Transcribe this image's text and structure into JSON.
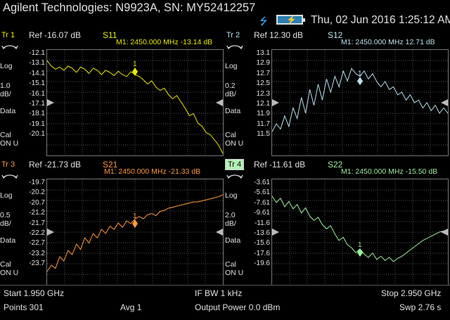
{
  "header": {
    "title": "Agilent Technologies: N9923A, SN: MY52412257",
    "datetime": "Thu, 02 Jun 2016 1:25:12 AM"
  },
  "colors": {
    "s11": "#e8e800",
    "s12": "#b8e0f0",
    "s21": "#ff9a3a",
    "s22": "#9ef09e",
    "active_tab": "#b5f0b5"
  },
  "traces": [
    {
      "id": "Tr 1",
      "param": "S11",
      "ref": "Ref -16.07 dB",
      "marker": "M1:  2450.000 MHz  -13.14 dB",
      "marker_num": "1",
      "format": "Log",
      "scale": "1.0",
      "unit": "dB/",
      "mode": "Data",
      "cal1": "Cal",
      "cal2": "ON U",
      "ticks": [
        "-12.1",
        "-13.1",
        "-14.1",
        "-15.1",
        "-16.1",
        "-17.1",
        "-18.1",
        "-19.1",
        "-20.1"
      ],
      "color": "#e8e800",
      "active": false,
      "chart_data": {
        "type": "line",
        "x_start_mhz": 1950,
        "x_stop_mhz": 2950,
        "ylim": [
          -21.07,
          -11.07
        ],
        "ref_value": -16.07,
        "marker_x": 2450,
        "marker_y": -13.14,
        "values": [
          -12.1,
          -12.6,
          -12.9,
          -12.7,
          -13.0,
          -12.6,
          -12.8,
          -13.2,
          -12.7,
          -12.9,
          -13.3,
          -12.8,
          -13.0,
          -13.4,
          -13.0,
          -13.2,
          -13.5,
          -13.1,
          -13.4,
          -13.6,
          -13.14,
          -13.4,
          -13.6,
          -13.9,
          -14.3,
          -14.0,
          -14.6,
          -14.9,
          -14.7,
          -15.3,
          -15.7,
          -15.4,
          -16.0,
          -16.6,
          -17.3,
          -17.1,
          -18.0,
          -18.3,
          -18.9,
          -19.1,
          -19.6,
          -20.1,
          -20.9
        ]
      }
    },
    {
      "id": "Tr 2",
      "param": "S12",
      "ref": "Ref 12.30 dB",
      "marker": "M1:  2450.000 MHz    12.71 dB",
      "marker_num": "1",
      "format": "Log",
      "scale": "0.2",
      "unit": "dB/",
      "mode": "Data",
      "cal1": "Cal",
      "cal2": "ON U",
      "ticks": [
        "13.1",
        "12.9",
        "12.7",
        "12.5",
        "12.3",
        "12.1",
        "11.9",
        "11.7",
        "11.5"
      ],
      "color": "#b8e0f0",
      "active": false,
      "chart_data": {
        "type": "line",
        "x_start_mhz": 1950,
        "x_stop_mhz": 2950,
        "ylim": [
          11.3,
          13.3
        ],
        "ref_value": 12.3,
        "marker_x": 2450,
        "marker_y": 12.71,
        "values": [
          11.75,
          11.9,
          11.8,
          12.05,
          11.85,
          12.2,
          12.0,
          12.4,
          12.1,
          12.55,
          12.25,
          12.65,
          12.35,
          12.75,
          12.5,
          12.8,
          12.6,
          12.9,
          12.71,
          12.95,
          12.85,
          12.8,
          12.9,
          12.75,
          12.85,
          12.7,
          12.6,
          12.7,
          12.55,
          12.6,
          12.45,
          12.5,
          12.35,
          12.45,
          12.3,
          12.35,
          12.2,
          12.3,
          12.15,
          12.25,
          12.1,
          12.2,
          12.1
        ]
      }
    },
    {
      "id": "Tr 3",
      "param": "S21",
      "ref": "Ref -21.73 dB",
      "marker": "M1:  2450.000 MHz  -21.33 dB",
      "marker_num": "1",
      "format": "Log",
      "scale": "0.5",
      "unit": "dB/",
      "mode": "Data",
      "cal1": "Cal",
      "cal2": "ON U",
      "ticks": [
        "-19.7",
        "-20.2",
        "-20.7",
        "-21.2",
        "-21.7",
        "-22.2",
        "-22.7",
        "-23.2",
        "-23.7"
      ],
      "color": "#ff9a3a",
      "active": false,
      "chart_data": {
        "type": "line",
        "x_start_mhz": 1950,
        "x_stop_mhz": 2950,
        "ylim": [
          -24.23,
          -19.23
        ],
        "ref_value": -21.73,
        "marker_x": 2450,
        "marker_y": -21.33,
        "values": [
          -23.6,
          -23.3,
          -23.45,
          -22.9,
          -23.1,
          -22.6,
          -22.8,
          -22.3,
          -22.55,
          -22.0,
          -22.25,
          -21.8,
          -22.0,
          -21.6,
          -21.8,
          -21.45,
          -21.6,
          -21.3,
          -21.5,
          -21.2,
          -21.33,
          -21.1,
          -21.0,
          -21.1,
          -20.9,
          -20.85,
          -20.95,
          -20.75,
          -20.7,
          -20.6,
          -20.55,
          -20.5,
          -20.45,
          -20.4,
          -20.35,
          -20.3,
          -20.3,
          -20.25,
          -20.2,
          -20.15,
          -20.1,
          -20.05,
          -19.95
        ]
      }
    },
    {
      "id": "Tr 4",
      "param": "S22",
      "ref": "Ref -11.61 dB",
      "marker": "M1:  2450.000 MHz  -15.50 dB",
      "marker_num": "1",
      "format": "Log",
      "scale": "2.0",
      "unit": "dB/",
      "mode": "Data",
      "cal1": "Cal",
      "cal2": "ON U",
      "ticks": [
        "-3.61",
        "-5.61",
        "-7.61",
        "-9.61",
        "-11.6",
        "-13.6",
        "-15.6",
        "-17.6",
        "-19.6"
      ],
      "color": "#9ef09e",
      "active": true,
      "chart_data": {
        "type": "line",
        "x_start_mhz": 1950,
        "x_stop_mhz": 2950,
        "ylim": [
          -21.61,
          -1.61
        ],
        "ref_value": -11.61,
        "marker_x": 2450,
        "marker_y": -15.5,
        "values": [
          -4.8,
          -6.0,
          -5.2,
          -6.8,
          -5.8,
          -7.2,
          -6.4,
          -8.0,
          -7.0,
          -8.6,
          -9.4,
          -8.8,
          -10.2,
          -11.0,
          -10.4,
          -12.0,
          -13.2,
          -12.6,
          -14.0,
          -14.6,
          -15.5,
          -14.8,
          -15.8,
          -16.4,
          -15.6,
          -16.8,
          -16.2,
          -17.0,
          -16.4,
          -17.2,
          -16.6,
          -16.2,
          -15.6,
          -15.0,
          -14.4,
          -13.8,
          -13.2,
          -12.8,
          -12.4,
          -12.0,
          -11.6,
          -11.4,
          -11.2
        ]
      }
    }
  ],
  "status": {
    "start": "Start 1.950 GHz",
    "ifbw": "IF BW 1 kHz",
    "stop": "Stop 2.950 GHz",
    "points": "Points 301",
    "avg": "Avg  1",
    "power": "Output Power 0.0 dBm",
    "sweep": "Swp 2.76 s"
  }
}
